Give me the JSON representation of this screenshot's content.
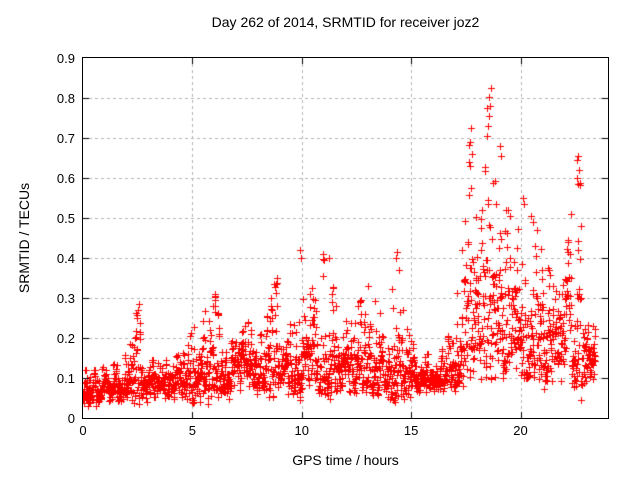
{
  "chart_data": {
    "type": "scatter",
    "title": "Day 262 of 2014, SRMTID for receiver joz2",
    "xlabel": "GPS time / hours",
    "ylabel": "SRMTID / TECUs",
    "xlim": [
      0,
      24
    ],
    "ylim": [
      0,
      0.9
    ],
    "xticks": {
      "values": [
        0,
        5,
        10,
        15,
        20
      ],
      "labels": [
        "0",
        "5",
        "10",
        "15",
        "20"
      ]
    },
    "yticks": {
      "values": [
        0,
        0.1,
        0.2,
        0.3,
        0.4,
        0.5,
        0.6,
        0.7,
        0.8,
        0.9
      ],
      "labels": [
        "0",
        "0.1",
        "0.2",
        "0.3",
        "0.4",
        "0.5",
        "0.6",
        "0.7",
        "0.8",
        "0.9"
      ]
    },
    "grid": true,
    "grid_color": "#b4b4b4",
    "axis_color": "#000000",
    "marker": "plus",
    "marker_color": "#ff0000",
    "marker_size_px": 7,
    "sample_count": 2400,
    "time_start_hours": 0.0,
    "time_end_hours": 23.42,
    "random_seed": 262,
    "envelope_hour_median_max": [
      [
        0.0,
        0.065,
        0.12
      ],
      [
        0.5,
        0.07,
        0.12
      ],
      [
        1.0,
        0.075,
        0.13
      ],
      [
        1.5,
        0.08,
        0.14
      ],
      [
        2.0,
        0.085,
        0.16
      ],
      [
        2.5,
        0.1,
        0.28
      ],
      [
        2.8,
        0.09,
        0.15
      ],
      [
        3.5,
        0.085,
        0.14
      ],
      [
        4.0,
        0.09,
        0.15
      ],
      [
        4.5,
        0.085,
        0.16
      ],
      [
        5.0,
        0.095,
        0.22
      ],
      [
        5.5,
        0.1,
        0.26
      ],
      [
        6.0,
        0.115,
        0.31
      ],
      [
        6.4,
        0.11,
        0.2
      ],
      [
        7.0,
        0.115,
        0.19
      ],
      [
        7.5,
        0.125,
        0.24
      ],
      [
        8.0,
        0.11,
        0.19
      ],
      [
        8.5,
        0.125,
        0.27
      ],
      [
        8.8,
        0.145,
        0.35
      ],
      [
        9.2,
        0.135,
        0.28
      ],
      [
        9.6,
        0.13,
        0.26
      ],
      [
        9.9,
        0.145,
        0.42
      ],
      [
        10.3,
        0.15,
        0.3
      ],
      [
        10.7,
        0.16,
        0.36
      ],
      [
        11.0,
        0.165,
        0.41
      ],
      [
        11.4,
        0.155,
        0.33
      ],
      [
        12.0,
        0.13,
        0.24
      ],
      [
        12.5,
        0.135,
        0.27
      ],
      [
        13.0,
        0.145,
        0.33
      ],
      [
        13.4,
        0.135,
        0.29
      ],
      [
        13.8,
        0.115,
        0.22
      ],
      [
        14.1,
        0.125,
        0.3
      ],
      [
        14.35,
        0.14,
        0.42
      ],
      [
        14.7,
        0.115,
        0.24
      ],
      [
        15.0,
        0.105,
        0.19
      ],
      [
        15.5,
        0.1,
        0.16
      ],
      [
        16.0,
        0.1,
        0.16
      ],
      [
        16.6,
        0.105,
        0.18
      ],
      [
        17.0,
        0.125,
        0.28
      ],
      [
        17.4,
        0.17,
        0.45
      ],
      [
        17.7,
        0.24,
        0.73
      ],
      [
        18.0,
        0.24,
        0.58
      ],
      [
        18.3,
        0.27,
        0.7
      ],
      [
        18.6,
        0.3,
        0.83
      ],
      [
        18.9,
        0.27,
        0.6
      ],
      [
        19.1,
        0.26,
        0.68
      ],
      [
        19.4,
        0.24,
        0.52
      ],
      [
        19.8,
        0.235,
        0.47
      ],
      [
        20.1,
        0.245,
        0.55
      ],
      [
        20.5,
        0.235,
        0.51
      ],
      [
        20.8,
        0.22,
        0.46
      ],
      [
        21.2,
        0.195,
        0.38
      ],
      [
        21.6,
        0.18,
        0.34
      ],
      [
        22.0,
        0.195,
        0.37
      ],
      [
        22.3,
        0.215,
        0.5
      ],
      [
        22.6,
        0.235,
        0.66
      ],
      [
        22.9,
        0.21,
        0.46
      ],
      [
        23.2,
        0.17,
        0.3
      ],
      [
        23.42,
        0.15,
        0.26
      ]
    ],
    "highlight_points": [
      [
        18.65,
        0.825
      ],
      [
        18.62,
        0.78
      ],
      [
        18.55,
        0.755
      ],
      [
        18.5,
        0.73
      ],
      [
        18.45,
        0.705
      ],
      [
        17.72,
        0.725
      ],
      [
        17.68,
        0.69
      ],
      [
        17.76,
        0.66
      ],
      [
        17.7,
        0.63
      ],
      [
        19.08,
        0.68
      ],
      [
        19.12,
        0.655
      ],
      [
        22.62,
        0.655
      ],
      [
        22.58,
        0.645
      ],
      [
        22.66,
        0.62
      ],
      [
        22.6,
        0.6
      ],
      [
        22.64,
        0.585
      ],
      [
        20.12,
        0.55
      ],
      [
        20.18,
        0.535
      ],
      [
        20.5,
        0.505
      ],
      [
        20.55,
        0.49
      ],
      [
        9.92,
        0.42
      ],
      [
        9.95,
        0.4
      ],
      [
        14.35,
        0.415
      ],
      [
        14.32,
        0.4
      ],
      [
        10.95,
        0.41
      ],
      [
        11.0,
        0.395
      ],
      [
        11.25,
        0.4
      ],
      [
        8.85,
        0.35
      ],
      [
        8.82,
        0.335
      ],
      [
        6.02,
        0.31
      ],
      [
        6.05,
        0.295
      ],
      [
        2.55,
        0.285
      ],
      [
        2.52,
        0.27
      ],
      [
        13.05,
        0.33
      ],
      [
        7.55,
        0.24
      ],
      [
        5.95,
        0.28
      ]
    ]
  }
}
